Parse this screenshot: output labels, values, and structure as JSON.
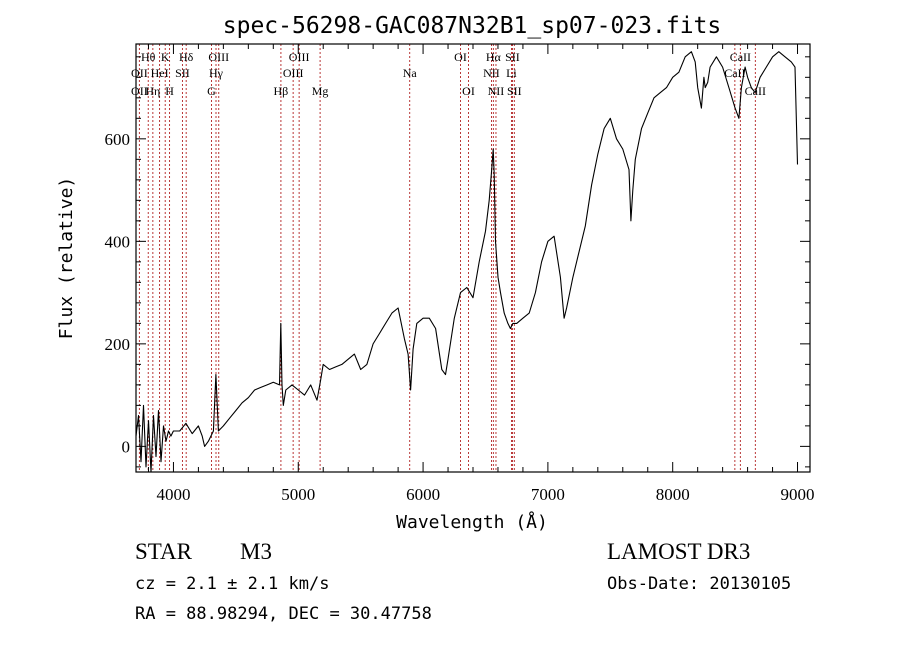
{
  "chart_data": {
    "type": "line",
    "title": "spec-56298-GAC087N32B1_sp07-023.fits",
    "xlabel": "Wavelength (Å)",
    "ylabel": "Flux (relative)",
    "xlim": [
      3700,
      9100
    ],
    "ylim": [
      -50,
      785
    ],
    "x_ticks": [
      4000,
      5000,
      6000,
      7000,
      8000,
      9000
    ],
    "y_ticks": [
      0,
      200,
      400,
      600
    ],
    "grid": false,
    "series": [
      {
        "name": "flux",
        "x": [
          3700,
          3720,
          3740,
          3760,
          3780,
          3800,
          3820,
          3840,
          3860,
          3880,
          3900,
          3920,
          3940,
          3960,
          3980,
          4000,
          4050,
          4100,
          4150,
          4200,
          4230,
          4250,
          4280,
          4300,
          4320,
          4340,
          4360,
          4400,
          4450,
          4500,
          4550,
          4600,
          4650,
          4700,
          4750,
          4800,
          4850,
          4860,
          4870,
          4880,
          4900,
          4950,
          5000,
          5050,
          5100,
          5150,
          5180,
          5200,
          5250,
          5300,
          5350,
          5400,
          5450,
          5500,
          5550,
          5600,
          5650,
          5700,
          5750,
          5800,
          5850,
          5880,
          5900,
          5920,
          5950,
          6000,
          6050,
          6100,
          6150,
          6180,
          6200,
          6250,
          6300,
          6350,
          6400,
          6450,
          6500,
          6530,
          6550,
          6562,
          6570,
          6580,
          6600,
          6620,
          6650,
          6680,
          6700,
          6720,
          6750,
          6800,
          6850,
          6900,
          6950,
          7000,
          7050,
          7100,
          7130,
          7150,
          7200,
          7250,
          7300,
          7350,
          7400,
          7450,
          7500,
          7550,
          7600,
          7650,
          7665,
          7680,
          7700,
          7750,
          7800,
          7850,
          7900,
          7950,
          8000,
          8050,
          8100,
          8150,
          8180,
          8200,
          8230,
          8250,
          8260,
          8280,
          8300,
          8350,
          8400,
          8450,
          8500,
          8530,
          8550,
          8580,
          8600,
          8630,
          8660,
          8700,
          8750,
          8800,
          8850,
          8900,
          8950,
          8980,
          9000
        ],
        "values": [
          20,
          60,
          -30,
          80,
          -40,
          50,
          -50,
          60,
          -20,
          70,
          -30,
          40,
          10,
          30,
          20,
          30,
          30,
          45,
          25,
          40,
          20,
          0,
          10,
          20,
          30,
          140,
          30,
          40,
          55,
          70,
          85,
          95,
          110,
          115,
          120,
          125,
          120,
          240,
          120,
          80,
          110,
          120,
          110,
          100,
          120,
          90,
          130,
          160,
          150,
          155,
          160,
          170,
          180,
          150,
          160,
          200,
          220,
          240,
          260,
          270,
          210,
          180,
          110,
          190,
          240,
          250,
          250,
          230,
          150,
          140,
          170,
          250,
          300,
          310,
          290,
          360,
          420,
          480,
          540,
          580,
          530,
          400,
          330,
          300,
          260,
          240,
          230,
          240,
          240,
          250,
          260,
          300,
          360,
          400,
          410,
          330,
          250,
          270,
          330,
          380,
          430,
          510,
          570,
          620,
          640,
          600,
          580,
          540,
          440,
          500,
          560,
          620,
          650,
          680,
          690,
          700,
          720,
          730,
          760,
          770,
          750,
          700,
          660,
          720,
          700,
          710,
          740,
          760,
          740,
          700,
          660,
          640,
          700,
          740,
          720,
          700,
          690,
          720,
          740,
          760,
          770,
          760,
          750,
          740,
          550
        ]
      }
    ],
    "line_labels": [
      {
        "text": "Hθ",
        "wavelength": 3798,
        "row": 1
      },
      {
        "text": "OII",
        "wavelength": 3727,
        "row": 2
      },
      {
        "text": "OII",
        "wavelength": 3727,
        "row": 3
      },
      {
        "text": "K",
        "wavelength": 3934,
        "row": 1
      },
      {
        "text": "HeI",
        "wavelength": 3889,
        "row": 2
      },
      {
        "text": "Hη",
        "wavelength": 3835,
        "row": 3
      },
      {
        "text": "SII",
        "wavelength": 4072,
        "row": 2
      },
      {
        "text": "H",
        "wavelength": 3969,
        "row": 3
      },
      {
        "text": "Hδ",
        "wavelength": 4102,
        "row": 1
      },
      {
        "text": "OIII",
        "wavelength": 4363,
        "row": 1
      },
      {
        "text": "Hγ",
        "wavelength": 4341,
        "row": 2
      },
      {
        "text": "G",
        "wavelength": 4305,
        "row": 3
      },
      {
        "text": "OIII",
        "wavelength": 5007,
        "row": 1
      },
      {
        "text": "OIII",
        "wavelength": 4959,
        "row": 2
      },
      {
        "text": "Hβ",
        "wavelength": 4861,
        "row": 3
      },
      {
        "text": "Mg",
        "wavelength": 5175,
        "row": 3
      },
      {
        "text": "Na",
        "wavelength": 5893,
        "row": 2
      },
      {
        "text": "OI",
        "wavelength": 6300,
        "row": 1
      },
      {
        "text": "OI",
        "wavelength": 6364,
        "row": 3
      },
      {
        "text": "Hα",
        "wavelength": 6563,
        "row": 1
      },
      {
        "text": "SII",
        "wavelength": 6716,
        "row": 1
      },
      {
        "text": "NII",
        "wavelength": 6548,
        "row": 2
      },
      {
        "text": "Li",
        "wavelength": 6708,
        "row": 2
      },
      {
        "text": "NII",
        "wavelength": 6584,
        "row": 3
      },
      {
        "text": "SII",
        "wavelength": 6731,
        "row": 3
      },
      {
        "text": "CaII",
        "wavelength": 8542,
        "row": 1
      },
      {
        "text": "CaII",
        "wavelength": 8498,
        "row": 2
      },
      {
        "text": "CaII",
        "wavelength": 8662,
        "row": 3
      }
    ],
    "line_markers": [
      3727,
      3798,
      3835,
      3889,
      3934,
      3969,
      4072,
      4102,
      4305,
      4341,
      4363,
      4861,
      4959,
      5007,
      5175,
      5893,
      6300,
      6364,
      6548,
      6563,
      6584,
      6708,
      6716,
      6731,
      8498,
      8542,
      8662
    ]
  },
  "info": {
    "class": "STAR",
    "subclass": "M3",
    "survey": "LAMOST DR3",
    "cz": "cz = 2.1 ± 2.1 km/s",
    "obs_date": "Obs-Date: 20130105",
    "coords": "RA =  88.98294, DEC =  30.47758"
  },
  "colors": {
    "marker": "#b22222",
    "trace": "#000000",
    "axes": "#000000"
  }
}
